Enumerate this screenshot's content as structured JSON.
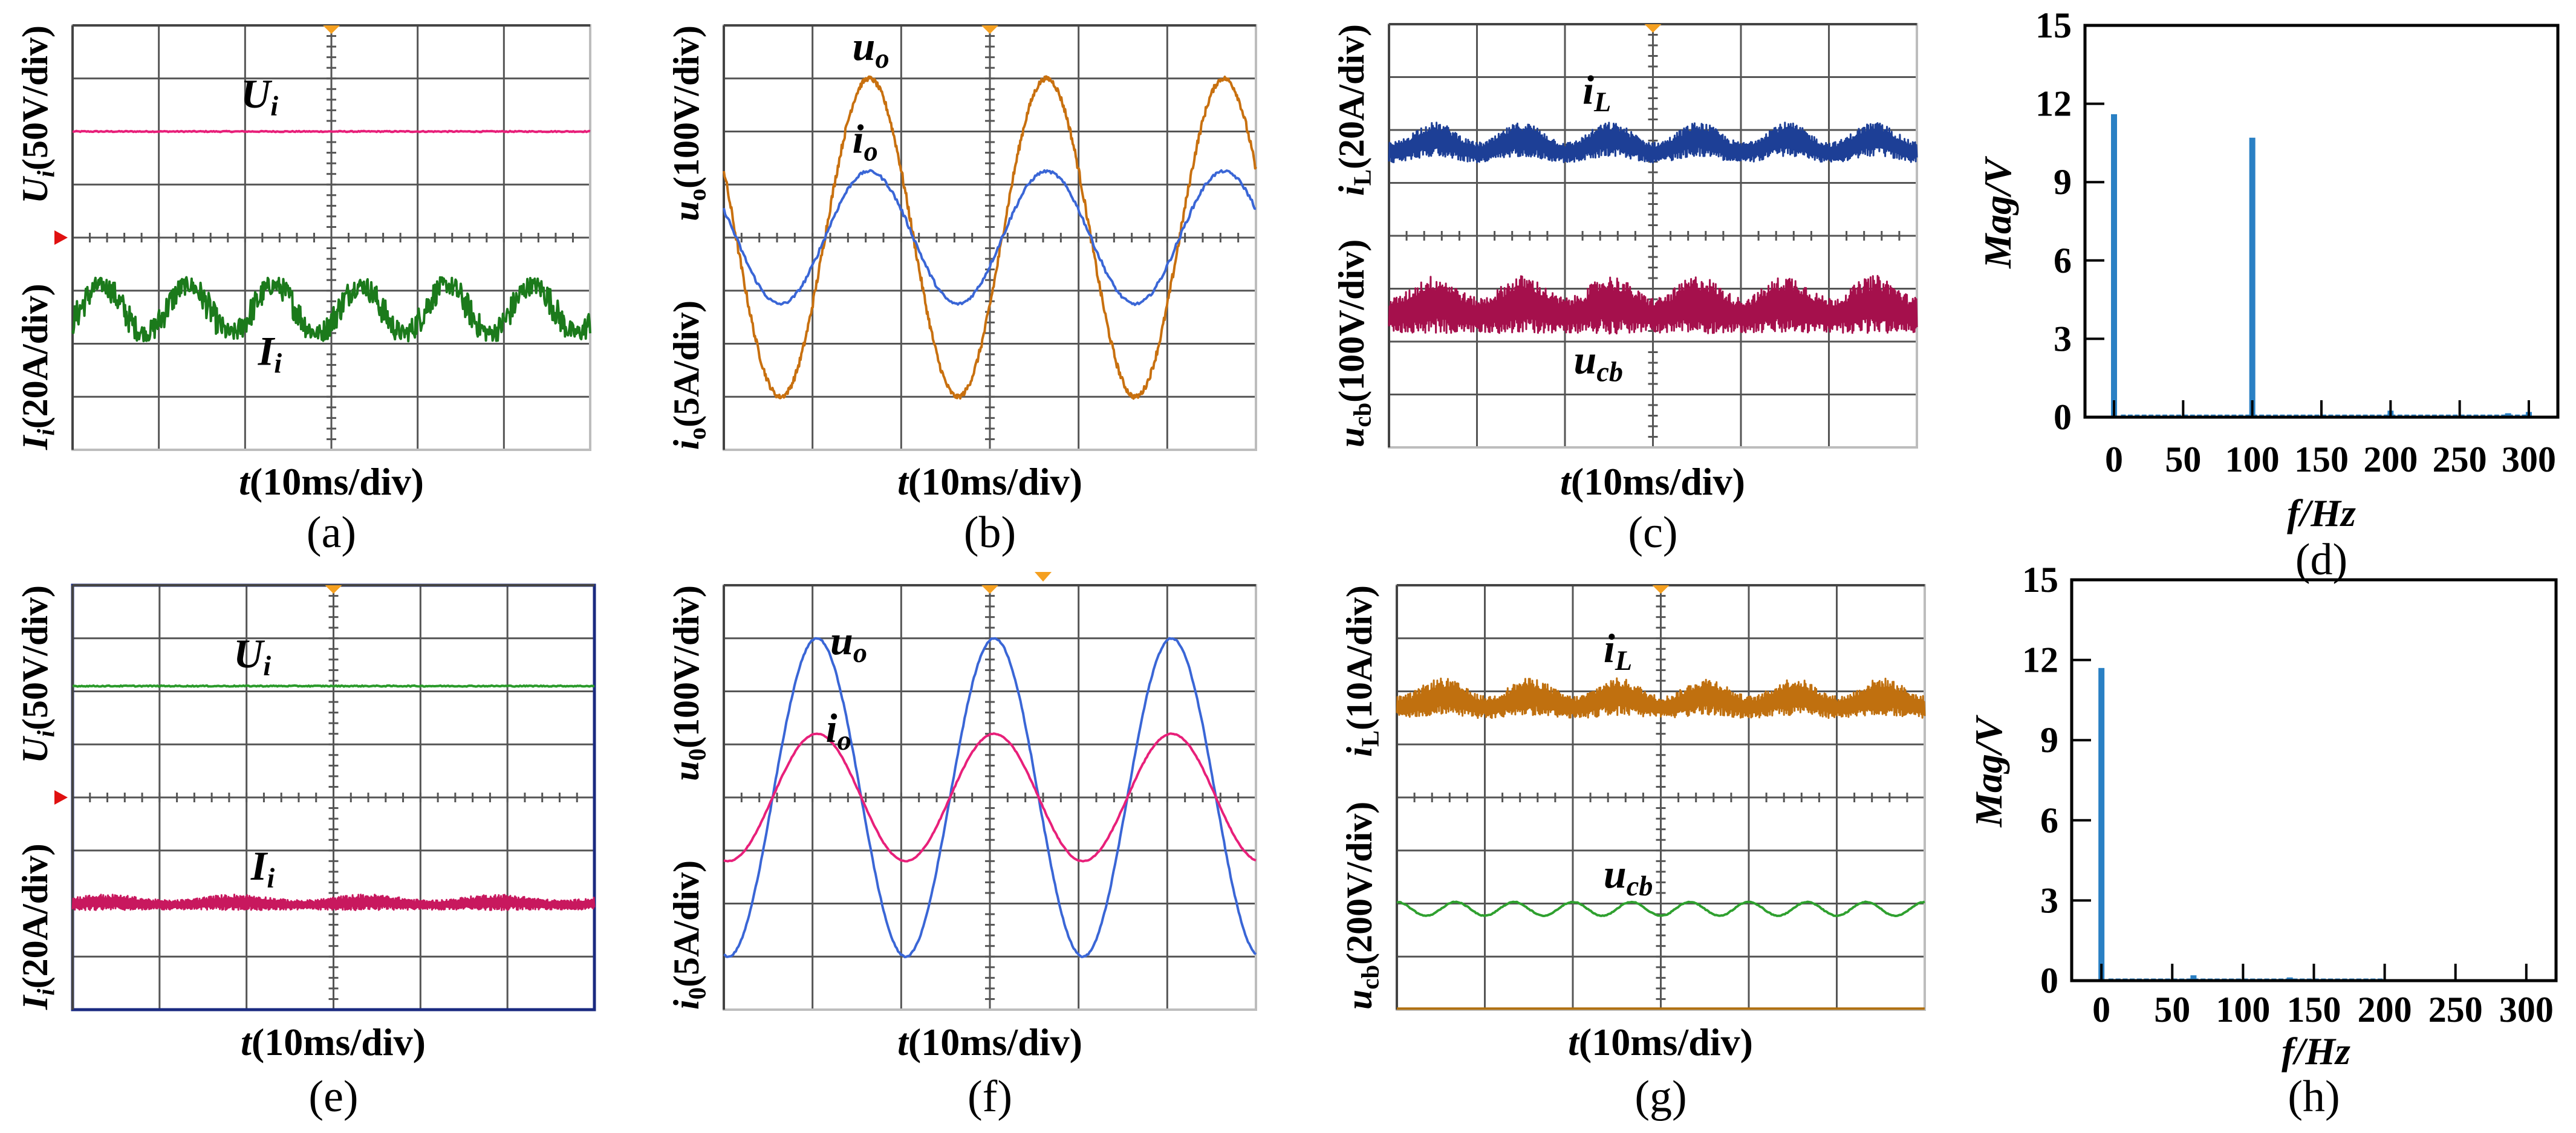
{
  "figure": {
    "scope_panels": [
      {
        "id": "a",
        "caption": "(a)",
        "x_label": {
          "var": "t",
          "rest": "(10ms/div)"
        },
        "y_label_top": [
          {
            "t": "U",
            "i": true
          },
          {
            "t": "i",
            "sub": true,
            "i": true
          },
          {
            "t": "(50V/div)"
          }
        ],
        "y_label_bottom": [
          {
            "t": "I",
            "i": true
          },
          {
            "t": "i",
            "sub": true,
            "i": true
          },
          {
            "t": "(20A/div)"
          }
        ],
        "frame": "#bdbdbd",
        "ref_marker": true,
        "traces": [
          {
            "name": "Ui",
            "label": [
              {
                "t": "U",
                "i": true
              },
              {
                "t": "i",
                "sub": true,
                "i": true
              }
            ],
            "color": "#e8207a",
            "type": "dc",
            "level_div": 2.0,
            "noise_div": 0.01
          },
          {
            "name": "Ii",
            "label": [
              {
                "t": "I",
                "i": true
              },
              {
                "t": "i",
                "sub": true,
                "i": true
              }
            ],
            "color": "#1b7a1b",
            "type": "sine",
            "level_div": -1.35,
            "amp_div": 0.45,
            "cycles": 6,
            "phase_deg": -32,
            "noise_div": 0.28
          }
        ]
      },
      {
        "id": "b",
        "caption": "(b)",
        "x_label": {
          "var": "t",
          "rest": "(10ms/div)"
        },
        "y_label_top": [
          {
            "t": "u",
            "i": true
          },
          {
            "t": "o",
            "sub": true
          },
          {
            "t": "(100V/div)"
          }
        ],
        "y_label_bottom": [
          {
            "t": "i",
            "i": true
          },
          {
            "t": "o",
            "sub": true
          },
          {
            "t": "(5A/div)"
          }
        ],
        "frame": "#bdbdbd",
        "ref_marker": false,
        "traces": [
          {
            "name": "uo",
            "label": [
              {
                "t": "u",
                "i": true
              },
              {
                "t": "o",
                "sub": true
              }
            ],
            "color": "#c8700f",
            "type": "sine",
            "level_div": 0,
            "amp_div": 3.0,
            "cycles": 3,
            "phase_deg": 155,
            "noise_div": 0.08
          },
          {
            "name": "io",
            "label": [
              {
                "t": "i",
                "i": true
              },
              {
                "t": "o",
                "sub": true
              }
            ],
            "color": "#3a66d6",
            "type": "sine",
            "level_div": 0,
            "amp_div": 1.25,
            "cycles": 3,
            "phase_deg": 155,
            "noise_div": 0.04
          }
        ]
      },
      {
        "id": "c",
        "caption": "(c)",
        "x_label": {
          "var": "t",
          "rest": "(10ms/div)"
        },
        "y_label_top": [
          {
            "t": "i",
            "i": true
          },
          {
            "t": "L",
            "sub": true
          },
          {
            "t": "(20A/div)"
          }
        ],
        "y_label_bottom": [
          {
            "t": "u",
            "i": true
          },
          {
            "t": "cb",
            "sub": true
          },
          {
            "t": "(100V/div)"
          }
        ],
        "frame": "#bdbdbd",
        "ref_marker": false,
        "traces": [
          {
            "name": "iL",
            "label": [
              {
                "t": "i",
                "i": true
              },
              {
                "t": "L",
                "sub": true
              }
            ],
            "color": "#1d3f96",
            "type": "band",
            "level_div": 1.7,
            "amp_div": 0.25,
            "cycles": 6,
            "phase_deg": -97,
            "band_div": 0.32
          },
          {
            "name": "ucb",
            "label": [
              {
                "t": "u",
                "i": true
              },
              {
                "t": "cb",
                "sub": true
              }
            ],
            "color": "#a5104c",
            "type": "band",
            "level_div": -1.4,
            "amp_div": 0.2,
            "cycles": 6,
            "phase_deg": -97,
            "band_div": 0.55
          }
        ]
      },
      {
        "id": "e",
        "caption": "(e)",
        "x_label": {
          "var": "t",
          "rest": "(10ms/div)"
        },
        "y_label_top": [
          {
            "t": "U",
            "i": true
          },
          {
            "t": "i",
            "sub": true,
            "i": true
          },
          {
            "t": "(50V/div)"
          }
        ],
        "y_label_bottom": [
          {
            "t": "I",
            "i": true
          },
          {
            "t": "i",
            "sub": true,
            "i": true
          },
          {
            "t": "(20A/div)"
          }
        ],
        "frame": "#1a2a80",
        "ref_marker": true,
        "traces": [
          {
            "name": "Ui",
            "label": [
              {
                "t": "U",
                "i": true
              },
              {
                "t": "i",
                "sub": true,
                "i": true
              }
            ],
            "color": "#2a9a2a",
            "type": "dc",
            "level_div": 2.1,
            "noise_div": 0.01
          },
          {
            "name": "Ii",
            "label": [
              {
                "t": "I",
                "i": true
              },
              {
                "t": "i",
                "sub": true,
                "i": true
              }
            ],
            "color": "#c8185e",
            "type": "band",
            "level_div": -2.0,
            "amp_div": 0.05,
            "cycles": 4,
            "phase_deg": 0,
            "band_div": 0.15
          }
        ]
      },
      {
        "id": "f",
        "caption": "(f)",
        "x_label": {
          "var": "t",
          "rest": "(10ms/div)"
        },
        "y_label_top": [
          {
            "t": "u",
            "i": true
          },
          {
            "t": "0",
            "sub": true
          },
          {
            "t": "(100V/div)"
          }
        ],
        "y_label_bottom": [
          {
            "t": "i",
            "i": true
          },
          {
            "t": "0",
            "sub": true
          },
          {
            "t": "(5A/div)"
          }
        ],
        "frame": "#bdbdbd",
        "ref_marker": false,
        "traces": [
          {
            "name": "uo",
            "label": [
              {
                "t": "u",
                "i": true
              },
              {
                "t": "o",
                "sub": true
              }
            ],
            "color": "#3a66d6",
            "type": "sine",
            "level_div": 0,
            "amp_div": 3.0,
            "cycles": 3,
            "phase_deg": -99,
            "noise_div": 0.02
          },
          {
            "name": "io",
            "label": [
              {
                "t": "i",
                "i": true
              },
              {
                "t": "o",
                "sub": true
              }
            ],
            "color": "#e8207a",
            "type": "sine",
            "level_div": 0,
            "amp_div": 1.2,
            "cycles": 3,
            "phase_deg": -99,
            "noise_div": 0.01
          }
        ]
      },
      {
        "id": "g",
        "caption": "(g)",
        "x_label": {
          "var": "t",
          "rest": "(10ms/div)"
        },
        "y_label_top": [
          {
            "t": "i",
            "i": true
          },
          {
            "t": "L",
            "sub": true
          },
          {
            "t": "(10A/div)"
          }
        ],
        "y_label_bottom": [
          {
            "t": "u",
            "i": true
          },
          {
            "t": "cb",
            "sub": true
          },
          {
            "t": "(200V/div)"
          }
        ],
        "frame": "#bdbdbd",
        "ref_marker": false,
        "traces": [
          {
            "name": "iL",
            "label": [
              {
                "t": "i",
                "i": true
              },
              {
                "t": "L",
                "sub": true
              }
            ],
            "color": "#c0700f",
            "type": "band",
            "level_div": 1.8,
            "amp_div": 0.2,
            "cycles": 6,
            "phase_deg": -97,
            "band_div": 0.35
          },
          {
            "name": "ucb",
            "label": [
              {
                "t": "u",
                "i": true
              },
              {
                "t": "cb",
                "sub": true
              }
            ],
            "color": "#2fa02f",
            "type": "sine",
            "level_div": -2.1,
            "amp_div": 0.13,
            "cycles": 9,
            "phase_deg": 90,
            "noise_div": 0.01
          },
          {
            "name": "baseline",
            "label": [],
            "color": "#b07010",
            "type": "dc",
            "level_div": -3.98,
            "noise_div": 0
          }
        ]
      }
    ]
  },
  "chart_data": [
    {
      "id": "d",
      "type": "bar",
      "caption": "(d)",
      "xlabel": "f/Hz",
      "ylabel": "Mag/V",
      "x_ticks": [
        0,
        50,
        100,
        150,
        200,
        250,
        300
      ],
      "y_ticks": [
        0,
        3,
        6,
        9,
        12,
        15
      ],
      "xlim": [
        -21,
        321
      ],
      "ylim": [
        0,
        15
      ],
      "bars": [
        {
          "x": 0,
          "y": 11.6
        },
        {
          "x": 100,
          "y": 10.7
        },
        {
          "x": 200,
          "y": 0.25
        },
        {
          "x": 285,
          "y": 0.15
        },
        {
          "x": 300,
          "y": 0.2
        }
      ],
      "noise_floor": {
        "from": 5,
        "to": 300,
        "y": 0.1
      }
    },
    {
      "id": "h",
      "type": "bar",
      "caption": "(h)",
      "xlabel": "f/Hz",
      "ylabel": "Mag/V",
      "x_ticks": [
        0,
        50,
        100,
        150,
        200,
        250,
        300
      ],
      "y_ticks": [
        0,
        3,
        6,
        9,
        12,
        15
      ],
      "xlim": [
        -21,
        321
      ],
      "ylim": [
        0,
        15
      ],
      "bars": [
        {
          "x": 0,
          "y": 11.7
        },
        {
          "x": 65,
          "y": 0.2
        },
        {
          "x": 133,
          "y": 0.12
        }
      ],
      "noise_floor": {
        "from": 5,
        "to": 200,
        "y": 0.08
      }
    }
  ]
}
